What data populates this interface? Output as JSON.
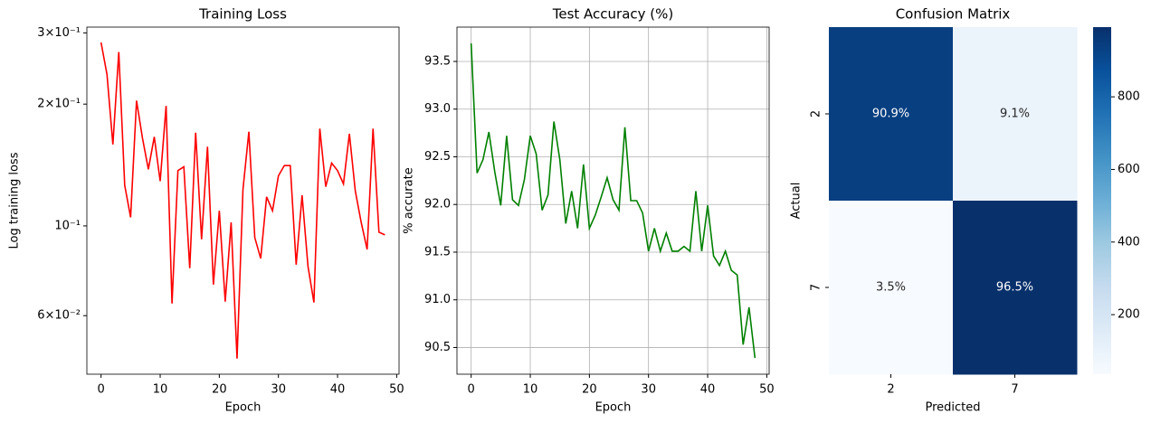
{
  "chart_data": [
    {
      "type": "line",
      "title": "Training Loss",
      "xlabel": "Epoch",
      "ylabel": "Log training loss",
      "yscale": "log",
      "grid": false,
      "x": [
        0,
        1,
        2,
        3,
        4,
        5,
        6,
        7,
        8,
        9,
        10,
        11,
        12,
        13,
        14,
        15,
        16,
        17,
        18,
        19,
        20,
        21,
        22,
        23,
        24,
        25,
        26,
        27,
        28,
        29,
        30,
        31,
        32,
        33,
        34,
        35,
        36,
        37,
        38,
        39,
        40,
        41,
        42,
        43,
        44,
        45,
        46,
        47,
        48
      ],
      "series": [
        {
          "color": "#ff0000",
          "values": [
            0.284,
            0.237,
            0.159,
            0.269,
            0.126,
            0.105,
            0.204,
            0.165,
            0.138,
            0.166,
            0.129,
            0.198,
            0.0643,
            0.137,
            0.14,
            0.0786,
            0.17,
            0.0926,
            0.157,
            0.0716,
            0.109,
            0.065,
            0.102,
            0.047,
            0.123,
            0.171,
            0.0936,
            0.0831,
            0.118,
            0.109,
            0.133,
            0.141,
            0.141,
            0.0802,
            0.119,
            0.0794,
            0.0647,
            0.174,
            0.125,
            0.143,
            0.137,
            0.127,
            0.169,
            0.122,
            0.102,
            0.0875,
            0.174,
            0.0965,
            0.095
          ]
        }
      ],
      "xlim": [
        -2.4,
        50.4
      ],
      "xticks": [
        0,
        10,
        20,
        30,
        40,
        50
      ],
      "ylim": [
        0.043,
        0.31
      ],
      "yticks": [
        {
          "value": 0.06,
          "label": "6×10⁻²"
        },
        {
          "value": 0.1,
          "label": "10⁻¹"
        },
        {
          "value": 0.2,
          "label": "2×10⁻¹"
        },
        {
          "value": 0.3,
          "label": "3×10⁻¹"
        }
      ]
    },
    {
      "type": "line",
      "title": "Test Accuracy (%)",
      "xlabel": "Epoch",
      "ylabel": "% accurate",
      "grid": true,
      "x": [
        0,
        1,
        2,
        3,
        4,
        5,
        6,
        7,
        8,
        9,
        10,
        11,
        12,
        13,
        14,
        15,
        16,
        17,
        18,
        19,
        20,
        21,
        22,
        23,
        24,
        25,
        26,
        27,
        28,
        29,
        30,
        31,
        32,
        33,
        34,
        35,
        36,
        37,
        38,
        39,
        40,
        41,
        42,
        43,
        44,
        45,
        46,
        47,
        48
      ],
      "series": [
        {
          "color": "#008000",
          "values": [
            93.69,
            92.33,
            92.47,
            92.76,
            92.34,
            91.99,
            92.72,
            92.05,
            91.99,
            92.26,
            92.72,
            92.53,
            91.94,
            92.1,
            92.87,
            92.47,
            91.8,
            92.14,
            91.75,
            92.42,
            91.75,
            91.89,
            92.08,
            92.28,
            92.05,
            91.94,
            92.81,
            92.04,
            92.04,
            91.91,
            91.51,
            91.75,
            91.51,
            91.7,
            91.51,
            91.51,
            91.56,
            91.51,
            92.14,
            91.51,
            91.99,
            91.46,
            91.36,
            91.51,
            91.31,
            91.26,
            90.53,
            90.92,
            90.39
          ]
        }
      ],
      "xlim": [
        -2.4,
        50.4
      ],
      "xticks": [
        0,
        10,
        20,
        30,
        40,
        50
      ],
      "ylim": [
        90.22,
        93.86
      ],
      "yticks": [
        {
          "value": 90.5,
          "label": "90.5"
        },
        {
          "value": 91,
          "label": "91.0"
        },
        {
          "value": 91.5,
          "label": "91.5"
        },
        {
          "value": 92,
          "label": "92.0"
        },
        {
          "value": 92.5,
          "label": "92.5"
        },
        {
          "value": 93,
          "label": "93.0"
        },
        {
          "value": 93.5,
          "label": "93.5"
        }
      ]
    },
    {
      "type": "heatmap",
      "title": "Confusion Matrix",
      "xlabel": "Predicted",
      "ylabel": "Actual",
      "categories": [
        "2",
        "7"
      ],
      "colormap": "Blues",
      "counts": [
        [
          938,
          94
        ],
        [
          36,
          992
        ]
      ],
      "values": [
        [
          90.9,
          9.1
        ],
        [
          3.5,
          96.5
        ]
      ],
      "value_labels": [
        [
          "90.9%",
          "9.1%"
        ],
        [
          "3.5%",
          "96.5%"
        ]
      ],
      "clim": [
        36,
        992
      ],
      "cticks": [
        200,
        400,
        600,
        800
      ]
    }
  ]
}
